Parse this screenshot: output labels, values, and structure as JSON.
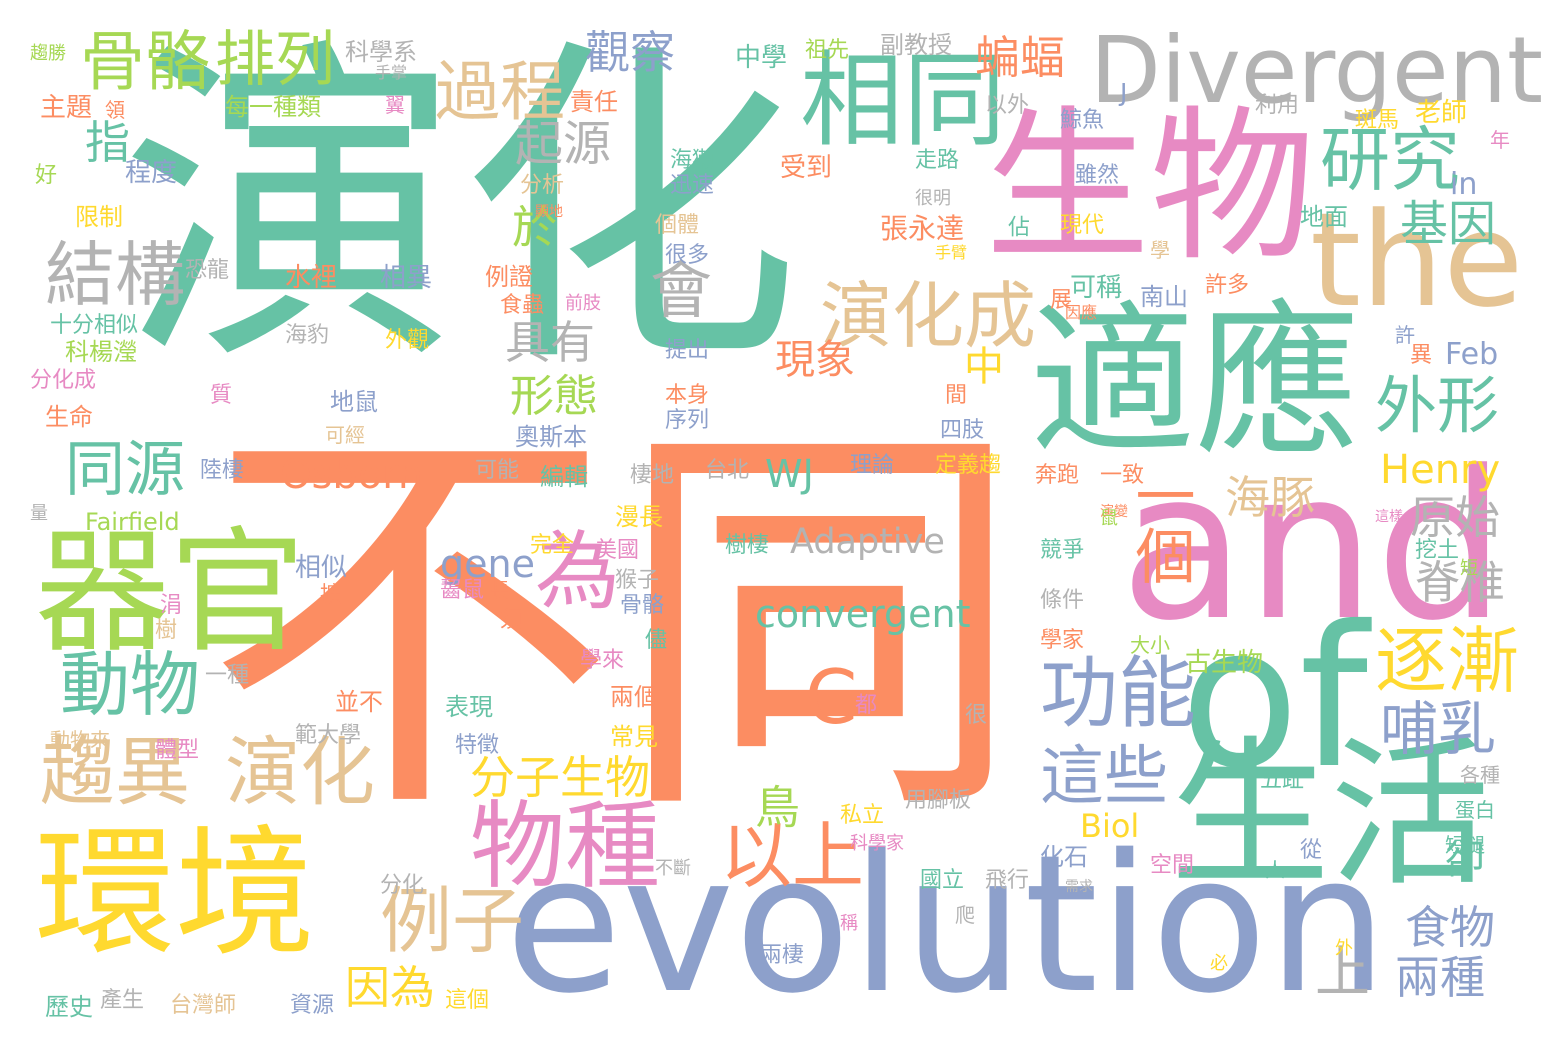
{
  "words": [
    {
      "text": "演化",
      "color": "#66c2a5"
    },
    {
      "text": "不同",
      "color": "#fc8d62"
    },
    {
      "text": "evolution",
      "color": "#8da0cb"
    },
    {
      "text": "生物",
      "color": "#e78ac3"
    },
    {
      "text": "適應",
      "color": "#66c2a5"
    },
    {
      "text": "and",
      "color": "#e78ac3"
    },
    {
      "text": "of",
      "color": "#66c2a5"
    },
    {
      "text": "the",
      "color": "#e5c494"
    },
    {
      "text": "生活",
      "color": "#66c2a5"
    },
    {
      "text": "Divergent",
      "color": "#b3b3b3"
    },
    {
      "text": "環境",
      "color": "#ffd92f"
    },
    {
      "text": "器官",
      "color": "#a6d854"
    },
    {
      "text": "相同",
      "color": "#66c2a5"
    },
    {
      "text": "物種",
      "color": "#e78ac3"
    },
    {
      "text": "C",
      "color": "#fc8d62"
    },
    {
      "text": "趨異",
      "color": "#e5c494"
    },
    {
      "text": "演化",
      "color": "#e5c494"
    },
    {
      "text": "演化成",
      "color": "#e5c494"
    },
    {
      "text": "過程",
      "color": "#e5c494"
    },
    {
      "text": "骨骼",
      "color": "#a6d854"
    },
    {
      "text": "排列",
      "color": "#a6d854"
    },
    {
      "text": "結構",
      "color": "#b3b3b3"
    },
    {
      "text": "動物",
      "color": "#66c2a5"
    },
    {
      "text": "同源",
      "color": "#66c2a5"
    },
    {
      "text": "為",
      "color": "#e78ac3"
    },
    {
      "text": "功能",
      "color": "#8da0cb"
    },
    {
      "text": "逐漸",
      "color": "#ffd92f"
    },
    {
      "text": "研究",
      "color": "#66c2a5"
    },
    {
      "text": "以上",
      "color": "#fc8d62"
    },
    {
      "text": "例子",
      "color": "#e5c494"
    },
    {
      "text": "這些",
      "color": "#8da0cb"
    },
    {
      "text": "外形",
      "color": "#66c2a5"
    },
    {
      "text": "一個",
      "color": "#fc8d62"
    },
    {
      "text": "哺乳",
      "color": "#8da0cb"
    },
    {
      "text": "觀察",
      "color": "#8da0cb"
    },
    {
      "text": "蝙蝠",
      "color": "#fc8d62"
    },
    {
      "text": "會",
      "color": "#b3b3b3"
    },
    {
      "text": "分子生物",
      "color": "#ffd92f"
    },
    {
      "text": "起源",
      "color": "#b3b3b3"
    },
    {
      "text": "具有",
      "color": "#b3b3b3"
    },
    {
      "text": "形態",
      "color": "#a6d854"
    },
    {
      "text": "convergent",
      "color": "#66c2a5"
    },
    {
      "text": "Osborn",
      "color": "#fc8d62"
    },
    {
      "text": "Henry",
      "color": "#ffd92f"
    },
    {
      "text": "Adaptive",
      "color": "#b3b3b3"
    },
    {
      "text": "gene",
      "color": "#8da0cb"
    },
    {
      "text": "WJ",
      "color": "#66c2a5"
    },
    {
      "text": "Biol",
      "color": "#ffd92f"
    },
    {
      "text": "基因",
      "color": "#66c2a5"
    },
    {
      "text": "原始",
      "color": "#b3b3b3"
    },
    {
      "text": "海豚",
      "color": "#e5c494"
    },
    {
      "text": "脊椎",
      "color": "#b3b3b3"
    },
    {
      "text": "食物",
      "color": "#8da0cb"
    },
    {
      "text": "兩種",
      "color": "#8da0cb"
    },
    {
      "text": "卻",
      "color": "#66c2a5"
    },
    {
      "text": "上",
      "color": "#b3b3b3"
    },
    {
      "text": "因為",
      "color": "#ffd92f"
    },
    {
      "text": "鳥",
      "color": "#a6d854"
    },
    {
      "text": "現象",
      "color": "#fc8d62"
    },
    {
      "text": "中",
      "color": "#ffd92f"
    },
    {
      "text": "指",
      "color": "#66c2a5"
    },
    {
      "text": "於",
      "color": "#a6d854"
    },
    {
      "text": "Feb",
      "color": "#8da0cb"
    },
    {
      "text": "in",
      "color": "#8da0cb"
    },
    {
      "text": "J",
      "color": "#8da0cb"
    },
    {
      "text": "Fairfield",
      "color": "#a6d854"
    },
    {
      "text": "中學",
      "color": "#66c2a5"
    },
    {
      "text": "祖先",
      "color": "#a6d854"
    },
    {
      "text": "副教授",
      "color": "#b3b3b3"
    },
    {
      "text": "科學系",
      "color": "#b3b3b3"
    },
    {
      "text": "每一種類",
      "color": "#a6d854"
    },
    {
      "text": "主題",
      "color": "#fc8d62"
    },
    {
      "text": "責任",
      "color": "#fc8d62"
    },
    {
      "text": "以外",
      "color": "#b3b3b3"
    },
    {
      "text": "利用",
      "color": "#b3b3b3"
    },
    {
      "text": "斑馬",
      "color": "#ffd92f"
    },
    {
      "text": "老師",
      "color": "#ffd92f"
    },
    {
      "text": "鯨魚",
      "color": "#8da0cb"
    },
    {
      "text": "雖然",
      "color": "#8da0cb"
    },
    {
      "text": "海獺",
      "color": "#66c2a5"
    },
    {
      "text": "受到",
      "color": "#fc8d62"
    },
    {
      "text": "走路",
      "color": "#66c2a5"
    },
    {
      "text": "迅速",
      "color": "#8da0cb"
    },
    {
      "text": "分析",
      "color": "#e5c494"
    },
    {
      "text": "個體",
      "color": "#e5c494"
    },
    {
      "text": "很多",
      "color": "#8da0cb"
    },
    {
      "text": "張永達",
      "color": "#fc8d62"
    },
    {
      "text": "佔",
      "color": "#66c2a5"
    },
    {
      "text": "現代",
      "color": "#ffd92f"
    },
    {
      "text": "地面",
      "color": "#66c2a5"
    },
    {
      "text": "程度",
      "color": "#8da0cb"
    },
    {
      "text": "限制",
      "color": "#ffd92f"
    },
    {
      "text": "恐龍",
      "color": "#b3b3b3"
    },
    {
      "text": "水裡",
      "color": "#fc8d62"
    },
    {
      "text": "相異",
      "color": "#8da0cb"
    },
    {
      "text": "例證",
      "color": "#fc8d62"
    },
    {
      "text": "食蟲",
      "color": "#fc8d62"
    },
    {
      "text": "前肢",
      "color": "#e78ac3"
    },
    {
      "text": "海豹",
      "color": "#b3b3b3"
    },
    {
      "text": "外觀",
      "color": "#ffd92f"
    },
    {
      "text": "提出",
      "color": "#8da0cb"
    },
    {
      "text": "可稱",
      "color": "#66c2a5"
    },
    {
      "text": "南山",
      "color": "#8da0cb"
    },
    {
      "text": "許多",
      "color": "#fc8d62"
    },
    {
      "text": "十分相似",
      "color": "#66c2a5"
    },
    {
      "text": "科楊瀅",
      "color": "#a6d854"
    },
    {
      "text": "分化成",
      "color": "#e78ac3"
    },
    {
      "text": "生命",
      "color": "#fc8d62"
    },
    {
      "text": "地鼠",
      "color": "#8da0cb"
    },
    {
      "text": "可經",
      "color": "#e5c494"
    },
    {
      "text": "奧斯本",
      "color": "#8da0cb"
    },
    {
      "text": "本身",
      "color": "#fc8d62"
    },
    {
      "text": "序列",
      "color": "#8da0cb"
    },
    {
      "text": "四肢",
      "color": "#8da0cb"
    },
    {
      "text": "陸棲",
      "color": "#8da0cb"
    },
    {
      "text": "可能",
      "color": "#b3b3b3"
    },
    {
      "text": "編輯",
      "color": "#66c2a5"
    },
    {
      "text": "棲地",
      "color": "#b3b3b3"
    },
    {
      "text": "台北",
      "color": "#b3b3b3"
    },
    {
      "text": "理論",
      "color": "#8da0cb"
    },
    {
      "text": "定義趨",
      "color": "#ffd92f"
    },
    {
      "text": "奔跑",
      "color": "#fc8d62"
    },
    {
      "text": "一致",
      "color": "#fc8d62"
    },
    {
      "text": "漫長",
      "color": "#ffd92f"
    },
    {
      "text": "完全",
      "color": "#ffd92f"
    },
    {
      "text": "美國",
      "color": "#e78ac3"
    },
    {
      "text": "猴子",
      "color": "#b3b3b3"
    },
    {
      "text": "樹棲",
      "color": "#66c2a5"
    },
    {
      "text": "相似",
      "color": "#8da0cb"
    },
    {
      "text": "競爭",
      "color": "#66c2a5"
    },
    {
      "text": "挖土",
      "color": "#66c2a5"
    },
    {
      "text": "條件",
      "color": "#b3b3b3"
    },
    {
      "text": "學家",
      "color": "#fc8d62"
    },
    {
      "text": "大小",
      "color": "#a6d854"
    },
    {
      "text": "古生物",
      "color": "#a6d854"
    },
    {
      "text": "一種",
      "color": "#b3b3b3"
    },
    {
      "text": "並不",
      "color": "#fc8d62"
    },
    {
      "text": "表現",
      "color": "#66c2a5"
    },
    {
      "text": "特徵",
      "color": "#8da0cb"
    },
    {
      "text": "常見",
      "color": "#ffd92f"
    },
    {
      "text": "兩個",
      "color": "#fc8d62"
    },
    {
      "text": "範大學",
      "color": "#b3b3b3"
    },
    {
      "text": "動物來",
      "color": "#e5c494"
    },
    {
      "text": "體型",
      "color": "#e78ac3"
    },
    {
      "text": "五趾",
      "color": "#66c2a5"
    },
    {
      "text": "各種",
      "color": "#b3b3b3"
    },
    {
      "text": "蛋白",
      "color": "#66c2a5"
    },
    {
      "text": "用腳板",
      "color": "#b3b3b3"
    },
    {
      "text": "私立",
      "color": "#ffd92f"
    },
    {
      "text": "科學家",
      "color": "#e78ac3"
    },
    {
      "text": "短腿",
      "color": "#66c2a5"
    },
    {
      "text": "不斷",
      "color": "#b3b3b3"
    },
    {
      "text": "國立",
      "color": "#66c2a5"
    },
    {
      "text": "飛行",
      "color": "#b3b3b3"
    },
    {
      "text": "化石",
      "color": "#8da0cb"
    },
    {
      "text": "空間",
      "color": "#e78ac3"
    },
    {
      "text": "分化",
      "color": "#b3b3b3"
    },
    {
      "text": "兩棲",
      "color": "#8da0cb"
    },
    {
      "text": "歷史",
      "color": "#66c2a5"
    },
    {
      "text": "產生",
      "color": "#b3b3b3"
    },
    {
      "text": "台灣師",
      "color": "#e5c494"
    },
    {
      "text": "資源",
      "color": "#8da0cb"
    },
    {
      "text": "這個",
      "color": "#ffd92f"
    },
    {
      "text": "好",
      "color": "#a6d854"
    },
    {
      "text": "量",
      "color": "#b3b3b3"
    },
    {
      "text": "年",
      "color": "#e78ac3"
    },
    {
      "text": "異",
      "color": "#fc8d62"
    },
    {
      "text": "許",
      "color": "#8da0cb"
    },
    {
      "text": "很",
      "color": "#b3b3b3"
    },
    {
      "text": "都",
      "color": "#e78ac3"
    },
    {
      "text": "人",
      "color": "#66c2a5"
    },
    {
      "text": "從",
      "color": "#8da0cb"
    },
    {
      "text": "必",
      "color": "#ffd92f"
    },
    {
      "text": "外",
      "color": "#ffd92f"
    },
    {
      "text": "爬",
      "color": "#b3b3b3"
    },
    {
      "text": "稱",
      "color": "#e78ac3"
    },
    {
      "text": "須",
      "color": "#fc8d62"
    },
    {
      "text": "長",
      "color": "#fc8d62"
    },
    {
      "text": "質",
      "color": "#e78ac3"
    },
    {
      "text": "間",
      "color": "#fc8d62"
    },
    {
      "text": "展",
      "color": "#fc8d62"
    },
    {
      "text": "領",
      "color": "#fc8d62"
    },
    {
      "text": "擴",
      "color": "#fc8d62"
    },
    {
      "text": "樹",
      "color": "#e5c494"
    },
    {
      "text": "涓",
      "color": "#e78ac3"
    },
    {
      "text": "儘",
      "color": "#66c2a5"
    },
    {
      "text": "骨骼",
      "color": "#8da0cb"
    },
    {
      "text": "齧鼠",
      "color": "#e78ac3"
    },
    {
      "text": "學來",
      "color": "#e78ac3"
    },
    {
      "text": "學",
      "color": "#e5c494"
    },
    {
      "text": "手臂",
      "color": "#ffd92f"
    },
    {
      "text": "手掌",
      "color": "#b3b3b3"
    },
    {
      "text": "翼",
      "color": "#e78ac3"
    },
    {
      "text": "顯地",
      "color": "#fc8d62"
    },
    {
      "text": "很明",
      "color": "#b3b3b3"
    },
    {
      "text": "因應",
      "color": "#fc8d62"
    },
    {
      "text": "趨勝",
      "color": "#a6d854"
    },
    {
      "text": "演變",
      "color": "#fc8d62"
    },
    {
      "text": "這樣",
      "color": "#e78ac3"
    },
    {
      "text": "短",
      "color": "#a6d854"
    },
    {
      "text": "需求",
      "color": "#b3b3b3"
    },
    {
      "text": "鼠",
      "color": "#a6d854"
    }
  ]
}
